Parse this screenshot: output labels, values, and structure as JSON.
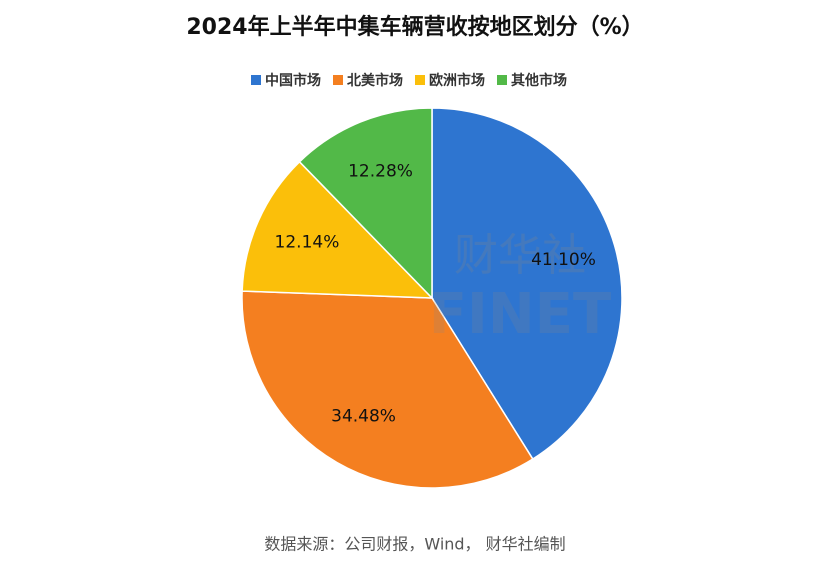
{
  "chart_data": {
    "type": "pie",
    "title": "2024年上半年中集车辆营收按地区划分（%）",
    "categories": [
      "中国市场",
      "北美市场",
      "欧洲市场",
      "其他市场"
    ],
    "values": [
      41.1,
      34.48,
      12.14,
      12.28
    ],
    "value_labels": [
      "41.10%",
      "34.48%",
      "12.14%",
      "12.28%"
    ],
    "colors": [
      "#2e75d0",
      "#f47f20",
      "#fbbf0a",
      "#52b948"
    ],
    "legend": "top",
    "source": "数据来源：公司财报，Wind， 财华社编制",
    "watermark": [
      "财华社",
      "FINET"
    ]
  }
}
